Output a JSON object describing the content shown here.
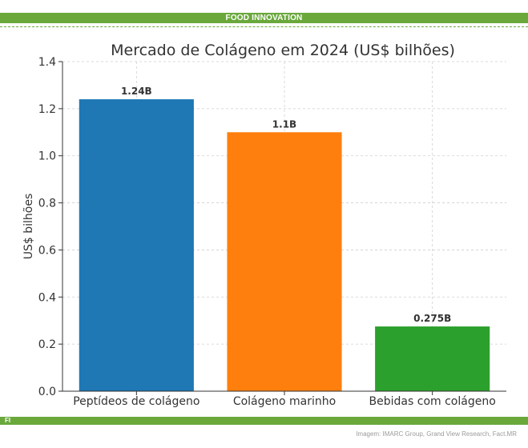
{
  "header": {
    "label": "FOOD INNOVATION"
  },
  "footer": {
    "tag": "FI",
    "source": "Imagem: IMARC Group, Grand View Research, Fact.MR"
  },
  "chart_data": {
    "type": "bar",
    "title": "Mercado de Colágeno em 2024 (US$ bilhões)",
    "xlabel": "",
    "ylabel": "US$ bilhões",
    "categories": [
      "Peptídeos de colágeno",
      "Colágeno marinho",
      "Bebidas com colágeno"
    ],
    "values": [
      1.24,
      1.1,
      0.275
    ],
    "data_labels": [
      "1.24B",
      "1.1B",
      "0.275B"
    ],
    "colors": [
      "#1f77b4",
      "#ff7f0e",
      "#2ca02c"
    ],
    "ylim": [
      0,
      1.4
    ],
    "yticks": [
      "0.0",
      "0.2",
      "0.4",
      "0.6",
      "0.8",
      "1.0",
      "1.2",
      "1.4"
    ],
    "grid": true,
    "legend": "none"
  }
}
